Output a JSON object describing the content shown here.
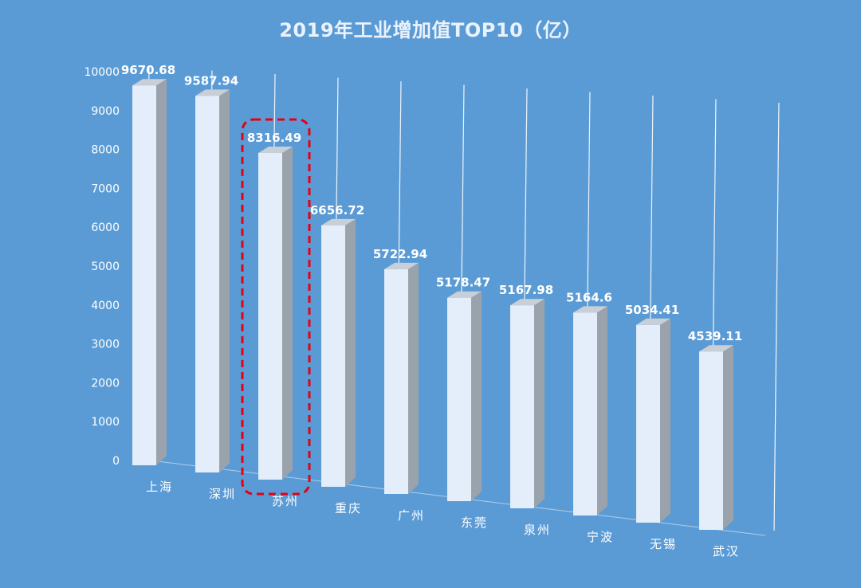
{
  "chart_data": {
    "type": "bar",
    "title": "2019年工业增加值TOP10（亿）",
    "categories": [
      "上海",
      "深圳",
      "苏州",
      "重庆",
      "广州",
      "东莞",
      "泉州",
      "宁波",
      "无锡",
      "武汉"
    ],
    "values": [
      9670.68,
      9587.94,
      8316.49,
      6656.72,
      5722.94,
      5178.47,
      5167.98,
      5164.6,
      5034.41,
      4539.11
    ],
    "value_labels": [
      "9670.68",
      "9587.94",
      "8316.49",
      "6656.72",
      "5722.94",
      "5178.47",
      "5167.98",
      "5164.6",
      "5034.41",
      "4539.11"
    ],
    "y_ticks": [
      "0",
      "1000",
      "2000",
      "3000",
      "4000",
      "5000",
      "6000",
      "7000",
      "8000",
      "9000",
      "10000"
    ],
    "ylim": [
      0,
      10000
    ],
    "xlabel": "",
    "ylabel": "",
    "legend": "none",
    "grid": true,
    "highlighted_category": "苏州",
    "colors": {
      "background": "#5b9bd5",
      "bar_front": "#e4eefa",
      "bar_side": "#9aa2ab",
      "bar_top": "#c9cfd6",
      "text": "#ffffff",
      "highlight": "#e60012"
    }
  }
}
